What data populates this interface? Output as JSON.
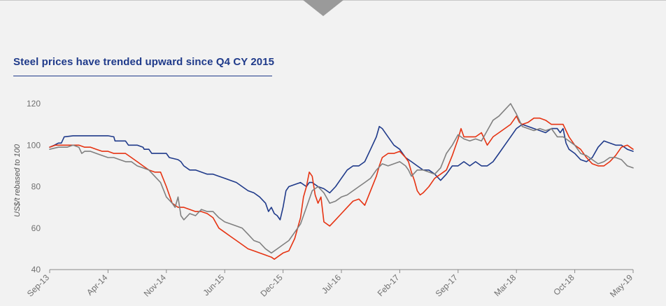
{
  "chart_data": {
    "type": "line",
    "title": "Steel prices have trended upward since Q4 CY 2015",
    "xlabel": "",
    "ylabel": "US$/t rebased to 100",
    "ylim": [
      40,
      125
    ],
    "yticks": [
      40,
      60,
      80,
      100,
      120
    ],
    "xticks": [
      "Sep-13",
      "Apr-14",
      "Nov-14",
      "Jun-15",
      "Dec-15",
      "Jul-16",
      "Feb-17",
      "Sep-17",
      "Mar-18",
      "Oct-18",
      "May-19"
    ],
    "x_range": [
      0,
      10
    ],
    "legend": "none",
    "colors": {
      "blue": "#1f3a8a",
      "red": "#e63312",
      "grey": "#808080"
    },
    "series": [
      {
        "name": "blue",
        "color": "#1f3a8a",
        "points": [
          [
            0,
            99
          ],
          [
            0.08,
            100
          ],
          [
            0.15,
            101
          ],
          [
            0.2,
            101
          ],
          [
            0.25,
            104
          ],
          [
            0.4,
            104.5
          ],
          [
            0.8,
            104.5
          ],
          [
            1.0,
            104.5
          ],
          [
            1.1,
            104
          ],
          [
            1.12,
            102
          ],
          [
            1.2,
            102
          ],
          [
            1.3,
            102
          ],
          [
            1.35,
            100
          ],
          [
            1.5,
            100
          ],
          [
            1.6,
            99
          ],
          [
            1.62,
            98
          ],
          [
            1.7,
            98
          ],
          [
            1.75,
            96
          ],
          [
            1.9,
            96
          ],
          [
            2.0,
            96
          ],
          [
            2.05,
            94
          ],
          [
            2.2,
            93
          ],
          [
            2.25,
            92
          ],
          [
            2.3,
            90
          ],
          [
            2.4,
            88
          ],
          [
            2.5,
            88
          ],
          [
            2.6,
            87
          ],
          [
            2.7,
            86
          ],
          [
            2.8,
            86
          ],
          [
            2.9,
            85
          ],
          [
            3.0,
            84
          ],
          [
            3.1,
            83
          ],
          [
            3.2,
            82
          ],
          [
            3.3,
            80
          ],
          [
            3.4,
            78
          ],
          [
            3.5,
            77
          ],
          [
            3.6,
            75
          ],
          [
            3.7,
            72
          ],
          [
            3.75,
            68
          ],
          [
            3.8,
            70
          ],
          [
            3.85,
            67
          ],
          [
            3.9,
            66
          ],
          [
            3.95,
            64
          ],
          [
            4.0,
            70
          ],
          [
            4.05,
            78
          ],
          [
            4.1,
            80
          ],
          [
            4.2,
            81
          ],
          [
            4.3,
            82
          ],
          [
            4.4,
            80
          ],
          [
            4.45,
            82
          ],
          [
            4.5,
            82
          ],
          [
            4.6,
            80
          ],
          [
            4.7,
            79
          ],
          [
            4.8,
            77
          ],
          [
            4.9,
            80
          ],
          [
            5.0,
            84
          ],
          [
            5.1,
            88
          ],
          [
            5.2,
            90
          ],
          [
            5.3,
            90
          ],
          [
            5.4,
            92
          ],
          [
            5.5,
            98
          ],
          [
            5.6,
            104
          ],
          [
            5.65,
            109
          ],
          [
            5.7,
            108
          ],
          [
            5.8,
            104
          ],
          [
            5.9,
            100
          ],
          [
            6.0,
            98
          ],
          [
            6.1,
            94
          ],
          [
            6.2,
            92
          ],
          [
            6.3,
            90
          ],
          [
            6.4,
            88
          ],
          [
            6.5,
            88
          ],
          [
            6.6,
            86
          ],
          [
            6.7,
            83
          ],
          [
            6.8,
            86
          ],
          [
            6.9,
            90
          ],
          [
            7.0,
            90
          ],
          [
            7.1,
            92
          ],
          [
            7.2,
            90
          ],
          [
            7.3,
            92
          ],
          [
            7.4,
            90
          ],
          [
            7.5,
            90
          ],
          [
            7.6,
            92
          ],
          [
            7.7,
            96
          ],
          [
            7.8,
            100
          ],
          [
            7.9,
            104
          ],
          [
            8.0,
            108
          ],
          [
            8.1,
            110
          ],
          [
            8.2,
            109
          ],
          [
            8.3,
            108
          ],
          [
            8.4,
            107
          ],
          [
            8.5,
            106
          ],
          [
            8.6,
            108
          ],
          [
            8.7,
            108
          ],
          [
            8.75,
            106
          ],
          [
            8.8,
            108
          ],
          [
            8.85,
            101
          ],
          [
            8.9,
            98
          ],
          [
            9.0,
            96
          ],
          [
            9.1,
            93
          ],
          [
            9.2,
            92
          ],
          [
            9.3,
            94
          ],
          [
            9.4,
            99
          ],
          [
            9.5,
            102
          ],
          [
            9.6,
            101
          ],
          [
            9.7,
            100
          ],
          [
            9.8,
            100
          ],
          [
            9.9,
            98
          ],
          [
            10.0,
            97
          ]
        ]
      },
      {
        "name": "red",
        "color": "#e63312",
        "points": [
          [
            0,
            99
          ],
          [
            0.1,
            100
          ],
          [
            0.3,
            100
          ],
          [
            0.5,
            100
          ],
          [
            0.6,
            99
          ],
          [
            0.7,
            99
          ],
          [
            0.8,
            98
          ],
          [
            0.9,
            97
          ],
          [
            1.0,
            97
          ],
          [
            1.1,
            96
          ],
          [
            1.3,
            96
          ],
          [
            1.4,
            94
          ],
          [
            1.5,
            92
          ],
          [
            1.6,
            90
          ],
          [
            1.7,
            88
          ],
          [
            1.8,
            87
          ],
          [
            1.9,
            87
          ],
          [
            2.0,
            80
          ],
          [
            2.1,
            72
          ],
          [
            2.2,
            70
          ],
          [
            2.3,
            70
          ],
          [
            2.4,
            69
          ],
          [
            2.5,
            68
          ],
          [
            2.6,
            68
          ],
          [
            2.7,
            67
          ],
          [
            2.8,
            65
          ],
          [
            2.9,
            60
          ],
          [
            3.0,
            58
          ],
          [
            3.1,
            56
          ],
          [
            3.2,
            54
          ],
          [
            3.3,
            52
          ],
          [
            3.4,
            50
          ],
          [
            3.5,
            49
          ],
          [
            3.6,
            48
          ],
          [
            3.7,
            47
          ],
          [
            3.8,
            46
          ],
          [
            3.85,
            45
          ],
          [
            3.9,
            46
          ],
          [
            4.0,
            48
          ],
          [
            4.1,
            49
          ],
          [
            4.2,
            55
          ],
          [
            4.3,
            65
          ],
          [
            4.35,
            75
          ],
          [
            4.4,
            80
          ],
          [
            4.45,
            87
          ],
          [
            4.5,
            85
          ],
          [
            4.55,
            76
          ],
          [
            4.6,
            72
          ],
          [
            4.65,
            75
          ],
          [
            4.7,
            63
          ],
          [
            4.8,
            61
          ],
          [
            4.9,
            64
          ],
          [
            5.0,
            67
          ],
          [
            5.1,
            70
          ],
          [
            5.2,
            73
          ],
          [
            5.3,
            74
          ],
          [
            5.4,
            71
          ],
          [
            5.5,
            78
          ],
          [
            5.6,
            85
          ],
          [
            5.65,
            90
          ],
          [
            5.7,
            94
          ],
          [
            5.8,
            96
          ],
          [
            5.9,
            96
          ],
          [
            6.0,
            97
          ],
          [
            6.1,
            94
          ],
          [
            6.15,
            92
          ],
          [
            6.2,
            87
          ],
          [
            6.25,
            83
          ],
          [
            6.3,
            78
          ],
          [
            6.35,
            76
          ],
          [
            6.4,
            77
          ],
          [
            6.5,
            80
          ],
          [
            6.6,
            84
          ],
          [
            6.7,
            86
          ],
          [
            6.8,
            88
          ],
          [
            6.9,
            95
          ],
          [
            7.0,
            103
          ],
          [
            7.05,
            108
          ],
          [
            7.1,
            104
          ],
          [
            7.2,
            104
          ],
          [
            7.3,
            104
          ],
          [
            7.4,
            106
          ],
          [
            7.5,
            100
          ],
          [
            7.6,
            104
          ],
          [
            7.7,
            106
          ],
          [
            7.8,
            108
          ],
          [
            7.9,
            110
          ],
          [
            8.0,
            114
          ],
          [
            8.05,
            111
          ],
          [
            8.1,
            110
          ],
          [
            8.2,
            111
          ],
          [
            8.3,
            113
          ],
          [
            8.4,
            113
          ],
          [
            8.5,
            112
          ],
          [
            8.6,
            110
          ],
          [
            8.7,
            110
          ],
          [
            8.8,
            110
          ],
          [
            8.9,
            104
          ],
          [
            9.0,
            100
          ],
          [
            9.1,
            98
          ],
          [
            9.2,
            94
          ],
          [
            9.3,
            91
          ],
          [
            9.4,
            90
          ],
          [
            9.5,
            90
          ],
          [
            9.6,
            92
          ],
          [
            9.7,
            95
          ],
          [
            9.8,
            99
          ],
          [
            9.9,
            100
          ],
          [
            10.0,
            98
          ]
        ]
      },
      {
        "name": "grey",
        "color": "#808080",
        "points": [
          [
            0,
            98
          ],
          [
            0.15,
            99
          ],
          [
            0.3,
            99
          ],
          [
            0.4,
            100
          ],
          [
            0.5,
            99
          ],
          [
            0.55,
            96
          ],
          [
            0.6,
            97
          ],
          [
            0.7,
            97
          ],
          [
            0.8,
            96
          ],
          [
            0.9,
            95
          ],
          [
            1.0,
            94
          ],
          [
            1.1,
            94
          ],
          [
            1.2,
            93
          ],
          [
            1.3,
            92
          ],
          [
            1.4,
            92
          ],
          [
            1.5,
            90
          ],
          [
            1.6,
            89
          ],
          [
            1.7,
            88
          ],
          [
            1.8,
            85
          ],
          [
            1.9,
            82
          ],
          [
            2.0,
            75
          ],
          [
            2.1,
            72
          ],
          [
            2.15,
            70
          ],
          [
            2.2,
            75
          ],
          [
            2.25,
            66
          ],
          [
            2.3,
            64
          ],
          [
            2.4,
            67
          ],
          [
            2.5,
            66
          ],
          [
            2.6,
            69
          ],
          [
            2.7,
            68
          ],
          [
            2.8,
            68
          ],
          [
            2.9,
            65
          ],
          [
            3.0,
            63
          ],
          [
            3.1,
            62
          ],
          [
            3.2,
            61
          ],
          [
            3.3,
            60
          ],
          [
            3.4,
            57
          ],
          [
            3.5,
            54
          ],
          [
            3.6,
            53
          ],
          [
            3.7,
            50
          ],
          [
            3.8,
            48
          ],
          [
            3.9,
            50
          ],
          [
            4.0,
            52
          ],
          [
            4.1,
            54
          ],
          [
            4.2,
            58
          ],
          [
            4.3,
            62
          ],
          [
            4.4,
            70
          ],
          [
            4.5,
            78
          ],
          [
            4.6,
            80
          ],
          [
            4.7,
            77
          ],
          [
            4.8,
            72
          ],
          [
            4.9,
            73
          ],
          [
            5.0,
            75
          ],
          [
            5.1,
            76
          ],
          [
            5.2,
            78
          ],
          [
            5.3,
            80
          ],
          [
            5.4,
            82
          ],
          [
            5.5,
            84
          ],
          [
            5.6,
            88
          ],
          [
            5.7,
            91
          ],
          [
            5.8,
            90
          ],
          [
            5.9,
            91
          ],
          [
            6.0,
            92
          ],
          [
            6.1,
            90
          ],
          [
            6.15,
            88
          ],
          [
            6.2,
            85
          ],
          [
            6.3,
            88
          ],
          [
            6.4,
            88
          ],
          [
            6.5,
            87
          ],
          [
            6.6,
            86
          ],
          [
            6.7,
            89
          ],
          [
            6.8,
            96
          ],
          [
            6.9,
            100
          ],
          [
            7.0,
            105
          ],
          [
            7.1,
            103
          ],
          [
            7.2,
            102
          ],
          [
            7.3,
            103
          ],
          [
            7.4,
            102
          ],
          [
            7.5,
            107
          ],
          [
            7.6,
            112
          ],
          [
            7.7,
            114
          ],
          [
            7.8,
            117
          ],
          [
            7.9,
            120
          ],
          [
            8.0,
            115
          ],
          [
            8.1,
            109
          ],
          [
            8.2,
            108
          ],
          [
            8.3,
            107
          ],
          [
            8.4,
            108
          ],
          [
            8.5,
            107
          ],
          [
            8.6,
            108
          ],
          [
            8.7,
            104
          ],
          [
            8.8,
            104
          ],
          [
            8.9,
            102
          ],
          [
            9.0,
            100
          ],
          [
            9.1,
            96
          ],
          [
            9.2,
            95
          ],
          [
            9.3,
            93
          ],
          [
            9.4,
            91
          ],
          [
            9.5,
            92
          ],
          [
            9.6,
            94
          ],
          [
            9.7,
            94
          ],
          [
            9.8,
            93
          ],
          [
            9.9,
            90
          ],
          [
            10.0,
            89
          ]
        ]
      }
    ]
  }
}
